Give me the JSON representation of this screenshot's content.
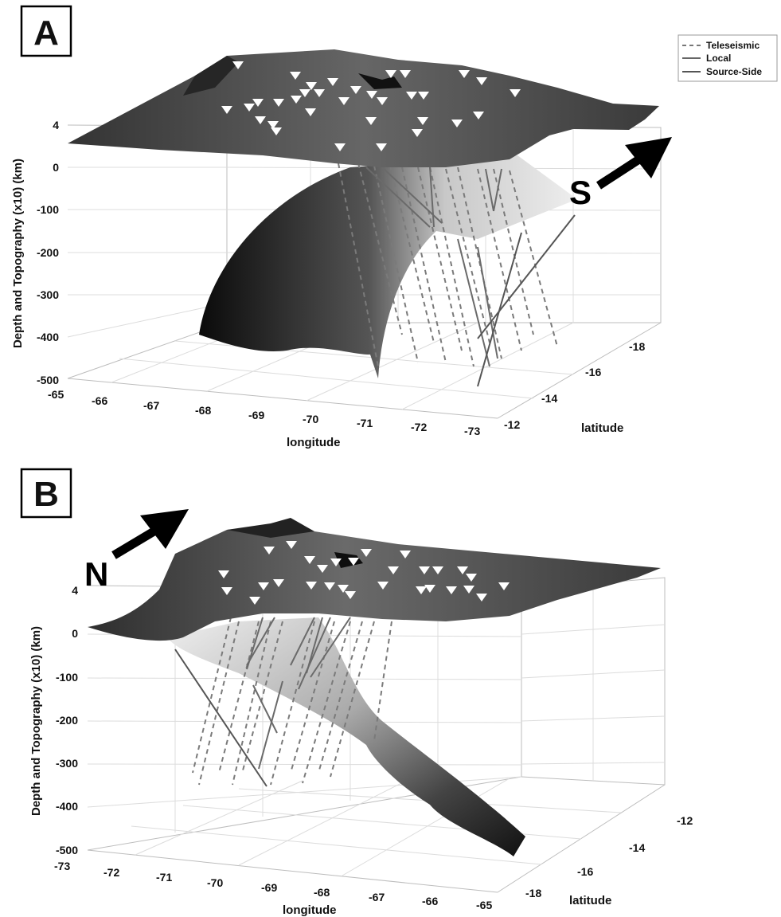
{
  "panels": [
    {
      "letter": "A",
      "compass": "S",
      "zlabel": "Depth and Topography (x10) (km)",
      "xlabel": "longitude",
      "ylabel": "latitude",
      "z_ticks": [
        "4",
        "0",
        "-100",
        "-200",
        "-300",
        "-400",
        "-500"
      ],
      "x_ticks": [
        "-65",
        "-66",
        "-67",
        "-68",
        "-69",
        "-70",
        "-71",
        "-72",
        "-73"
      ],
      "y_ticks": [
        "-12",
        "-14",
        "-16",
        "-18"
      ],
      "legend": [
        "Teleseismic",
        "Local",
        "Source-Side"
      ]
    },
    {
      "letter": "B",
      "compass": "N",
      "zlabel": "Depth and Topography (x10) (km)",
      "xlabel": "longitude",
      "ylabel": "latitude",
      "z_ticks": [
        "4",
        "0",
        "-100",
        "-200",
        "-300",
        "-400",
        "-500"
      ],
      "x_ticks": [
        "-73",
        "-72",
        "-71",
        "-70",
        "-69",
        "-68",
        "-67",
        "-66",
        "-65"
      ],
      "y_ticks": [
        "-12",
        "-14",
        "-16",
        "-18"
      ]
    }
  ],
  "colors": {
    "teleseismic": "#7a7a7a",
    "local": "#6a6a6a",
    "source_side": "#555555",
    "station_marker": "#ffffff"
  }
}
